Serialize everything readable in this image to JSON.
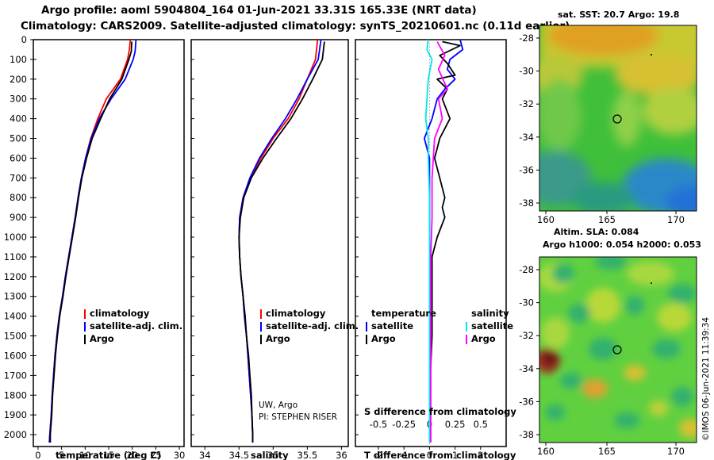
{
  "header": {
    "line1": "Argo profile: aoml 5904804_164 01-Jun-2021 33.31S 165.33E (NRT data)",
    "line2": "Climatology: CARS2009. Satellite-adjusted climatology: synTS_20210601.nc (0.11d earlier)"
  },
  "colors": {
    "clim": "#ff0000",
    "sat": "#0000ff",
    "argo": "#000000",
    "sat_s": "#00e5ee",
    "clim_s": "#ff00ff"
  },
  "chart_data": [
    {
      "type": "line",
      "id": "temperature",
      "xlabel": "temperature (deg C)",
      "ylabel": "depth (m)",
      "xlim": [
        -1,
        31
      ],
      "ylim": [
        2060,
        0
      ],
      "xticks": [
        0,
        5,
        10,
        15,
        20,
        25,
        30
      ],
      "yticks": [
        0,
        100,
        200,
        300,
        400,
        500,
        600,
        700,
        800,
        900,
        1000,
        1100,
        1200,
        1300,
        1400,
        1500,
        1600,
        1700,
        1800,
        1900,
        2000
      ],
      "legend": [
        "climatology",
        "satellite-adj. clim.",
        "Argo"
      ],
      "series": [
        {
          "name": "climatology",
          "color_key": "clim",
          "points": [
            [
              19.6,
              0
            ],
            [
              19.4,
              50
            ],
            [
              19.0,
              100
            ],
            [
              17.5,
              200
            ],
            [
              14.5,
              300
            ],
            [
              12.7,
              400
            ],
            [
              11.2,
              500
            ],
            [
              10.1,
              600
            ],
            [
              9.2,
              700
            ],
            [
              8.5,
              800
            ],
            [
              7.9,
              900
            ],
            [
              7.2,
              1000
            ],
            [
              6.5,
              1100
            ],
            [
              5.8,
              1200
            ],
            [
              5.2,
              1300
            ],
            [
              4.5,
              1400
            ],
            [
              4.0,
              1500
            ],
            [
              3.6,
              1600
            ],
            [
              3.3,
              1700
            ],
            [
              3.0,
              1800
            ],
            [
              2.8,
              1900
            ],
            [
              2.5,
              2000
            ],
            [
              2.4,
              2040
            ]
          ]
        },
        {
          "name": "satellite-adj. clim.",
          "color_key": "sat",
          "points": [
            [
              20.8,
              0
            ],
            [
              20.6,
              60
            ],
            [
              20.2,
              100
            ],
            [
              18.5,
              200
            ],
            [
              15.5,
              300
            ],
            [
              13.0,
              400
            ],
            [
              11.3,
              500
            ],
            [
              10.1,
              600
            ],
            [
              9.2,
              700
            ],
            [
              8.5,
              800
            ],
            [
              7.9,
              900
            ],
            [
              7.2,
              1000
            ],
            [
              6.5,
              1100
            ],
            [
              5.8,
              1200
            ],
            [
              5.2,
              1300
            ],
            [
              4.5,
              1400
            ],
            [
              4.0,
              1500
            ],
            [
              3.6,
              1600
            ],
            [
              3.3,
              1700
            ],
            [
              3.0,
              1800
            ],
            [
              2.8,
              1900
            ],
            [
              2.5,
              2000
            ],
            [
              2.4,
              2040
            ]
          ]
        },
        {
          "name": "Argo",
          "color_key": "argo",
          "points": [
            [
              19.9,
              10
            ],
            [
              19.8,
              60
            ],
            [
              19.3,
              100
            ],
            [
              17.8,
              200
            ],
            [
              15.2,
              300
            ],
            [
              13.3,
              400
            ],
            [
              11.5,
              500
            ],
            [
              10.3,
              600
            ],
            [
              9.3,
              700
            ],
            [
              8.6,
              800
            ],
            [
              8.0,
              900
            ],
            [
              7.3,
              1000
            ],
            [
              6.6,
              1100
            ],
            [
              5.9,
              1200
            ],
            [
              5.3,
              1300
            ],
            [
              4.6,
              1400
            ],
            [
              4.1,
              1500
            ],
            [
              3.7,
              1600
            ],
            [
              3.4,
              1700
            ],
            [
              3.1,
              1800
            ],
            [
              2.9,
              1900
            ],
            [
              2.6,
              2000
            ],
            [
              2.6,
              2040
            ]
          ]
        }
      ]
    },
    {
      "type": "line",
      "id": "salinity",
      "xlabel": "salinity",
      "xlim": [
        33.8,
        36.1
      ],
      "ylim": [
        2060,
        0
      ],
      "xticks": [
        34,
        34.5,
        35,
        35.5,
        36
      ],
      "legend": [
        "climatology",
        "satellite-adj. clim.",
        "Argo"
      ],
      "credits": [
        "UW, Argo",
        "PI: STEPHEN RISER"
      ],
      "series": [
        {
          "name": "climatology",
          "color_key": "clim",
          "points": [
            [
              35.65,
              0
            ],
            [
              35.62,
              100
            ],
            [
              35.5,
              200
            ],
            [
              35.38,
              300
            ],
            [
              35.22,
              400
            ],
            [
              35.0,
              500
            ],
            [
              34.82,
              600
            ],
            [
              34.67,
              700
            ],
            [
              34.56,
              800
            ],
            [
              34.51,
              900
            ],
            [
              34.5,
              1000
            ],
            [
              34.51,
              1100
            ],
            [
              34.53,
              1200
            ],
            [
              34.56,
              1300
            ],
            [
              34.58,
              1400
            ],
            [
              34.61,
              1500
            ],
            [
              34.63,
              1600
            ],
            [
              34.65,
              1700
            ],
            [
              34.67,
              1800
            ],
            [
              34.69,
              1900
            ],
            [
              34.7,
              2000
            ],
            [
              34.7,
              2040
            ]
          ]
        },
        {
          "name": "satellite-adj. clim.",
          "color_key": "sat",
          "points": [
            [
              35.7,
              0
            ],
            [
              35.66,
              100
            ],
            [
              35.5,
              200
            ],
            [
              35.35,
              300
            ],
            [
              35.18,
              400
            ],
            [
              34.98,
              500
            ],
            [
              34.8,
              600
            ],
            [
              34.66,
              700
            ],
            [
              34.56,
              800
            ],
            [
              34.51,
              900
            ],
            [
              34.5,
              1000
            ],
            [
              34.51,
              1100
            ],
            [
              34.53,
              1200
            ],
            [
              34.56,
              1300
            ],
            [
              34.58,
              1400
            ],
            [
              34.61,
              1500
            ],
            [
              34.63,
              1600
            ],
            [
              34.65,
              1700
            ],
            [
              34.67,
              1800
            ],
            [
              34.69,
              1900
            ],
            [
              34.7,
              2000
            ],
            [
              34.7,
              2040
            ]
          ]
        },
        {
          "name": "Argo",
          "color_key": "argo",
          "points": [
            [
              35.75,
              10
            ],
            [
              35.72,
              100
            ],
            [
              35.58,
              200
            ],
            [
              35.43,
              300
            ],
            [
              35.26,
              400
            ],
            [
              35.05,
              500
            ],
            [
              34.85,
              600
            ],
            [
              34.68,
              700
            ],
            [
              34.57,
              800
            ],
            [
              34.52,
              900
            ],
            [
              34.5,
              1000
            ],
            [
              34.51,
              1100
            ],
            [
              34.53,
              1200
            ],
            [
              34.56,
              1300
            ],
            [
              34.59,
              1400
            ],
            [
              34.61,
              1500
            ],
            [
              34.64,
              1600
            ],
            [
              34.66,
              1700
            ],
            [
              34.68,
              1800
            ],
            [
              34.69,
              1900
            ],
            [
              34.7,
              2000
            ],
            [
              34.7,
              2040
            ]
          ]
        }
      ]
    },
    {
      "type": "line",
      "id": "differences",
      "xlabel": "T difference from climatology",
      "xlabel_top": "S difference from climatology",
      "xlim": [
        -2.9,
        3.0
      ],
      "ylim": [
        2060,
        0
      ],
      "xticks": [
        -2,
        -1,
        0,
        1,
        2
      ],
      "xticks_top": [
        "-0.5",
        "-0.25",
        "0",
        "0.25",
        "0.5"
      ],
      "xticks_top_pos": [
        -2,
        -1,
        0,
        1,
        2
      ],
      "legend_temperature": {
        "title": "temperature",
        "items": [
          "satellite",
          "Argo"
        ]
      },
      "legend_salinity": {
        "title": "salinity",
        "items": [
          "satellite",
          "Argo"
        ]
      },
      "series": [
        {
          "name": "T satellite",
          "color_key": "sat",
          "points": [
            [
              1.2,
              0
            ],
            [
              1.3,
              50
            ],
            [
              0.8,
              100
            ],
            [
              0.7,
              150
            ],
            [
              1.0,
              200
            ],
            [
              0.6,
              250
            ],
            [
              0.3,
              300
            ],
            [
              0.1,
              400
            ],
            [
              -0.2,
              500
            ],
            [
              0.0,
              600
            ],
            [
              0.0,
              700
            ],
            [
              0.0,
              800
            ],
            [
              0.0,
              900
            ],
            [
              0.0,
              1000
            ],
            [
              0.0,
              1100
            ],
            [
              0.0,
              1200
            ],
            [
              0.0,
              1500
            ],
            [
              0.0,
              1800
            ],
            [
              0.0,
              2040
            ]
          ]
        },
        {
          "name": "T Argo",
          "color_key": "argo",
          "points": [
            [
              0.5,
              10
            ],
            [
              1.2,
              30
            ],
            [
              0.4,
              80
            ],
            [
              0.7,
              120
            ],
            [
              1.0,
              180
            ],
            [
              0.3,
              200
            ],
            [
              0.7,
              250
            ],
            [
              0.5,
              300
            ],
            [
              0.8,
              400
            ],
            [
              0.4,
              500
            ],
            [
              0.3,
              550
            ],
            [
              0.2,
              600
            ],
            [
              0.4,
              700
            ],
            [
              0.6,
              800
            ],
            [
              0.5,
              850
            ],
            [
              0.6,
              900
            ],
            [
              0.3,
              1000
            ],
            [
              0.1,
              1100
            ],
            [
              0.1,
              1200
            ],
            [
              0.1,
              1500
            ],
            [
              0.0,
              1800
            ],
            [
              0.0,
              2040
            ]
          ]
        },
        {
          "name": "S satellite",
          "color_key": "sat_s",
          "points": [
            [
              -0.05,
              0
            ],
            [
              -0.1,
              50
            ],
            [
              0.1,
              100
            ],
            [
              -0.05,
              200
            ],
            [
              -0.1,
              300
            ],
            [
              -0.15,
              400
            ],
            [
              -0.05,
              500
            ],
            [
              -0.05,
              600
            ],
            [
              0.0,
              800
            ],
            [
              0.0,
              1000
            ],
            [
              0.0,
              1200
            ],
            [
              0.0,
              1600
            ],
            [
              0.0,
              2040
            ]
          ]
        },
        {
          "name": "S Argo",
          "color_key": "clim_s",
          "points": [
            [
              0.3,
              10
            ],
            [
              0.6,
              80
            ],
            [
              0.35,
              150
            ],
            [
              0.7,
              250
            ],
            [
              0.35,
              300
            ],
            [
              0.5,
              400
            ],
            [
              0.2,
              500
            ],
            [
              0.15,
              600
            ],
            [
              0.1,
              700
            ],
            [
              0.1,
              900
            ],
            [
              0.05,
              1100
            ],
            [
              0.05,
              1500
            ],
            [
              0.05,
              2040
            ]
          ]
        }
      ]
    }
  ],
  "map_sst": {
    "title": "sat. SST: 20.7 Argo: 19.8",
    "lon_ticks": [
      "160",
      "165",
      "170"
    ],
    "lat_ticks": [
      "-28",
      "-30",
      "-32",
      "-34",
      "-36",
      "-38"
    ]
  },
  "map_sla": {
    "title1": "Altim. SLA: 0.084",
    "title2": "Argo h1000: 0.054 h2000: 0.053",
    "lon_ticks": [
      "160",
      "165",
      "170"
    ],
    "lat_ticks": [
      "-28",
      "-30",
      "-32",
      "-34",
      "-36",
      "-38"
    ]
  },
  "watermark": "©IMOS 06-Jun-2021 11:39:34"
}
